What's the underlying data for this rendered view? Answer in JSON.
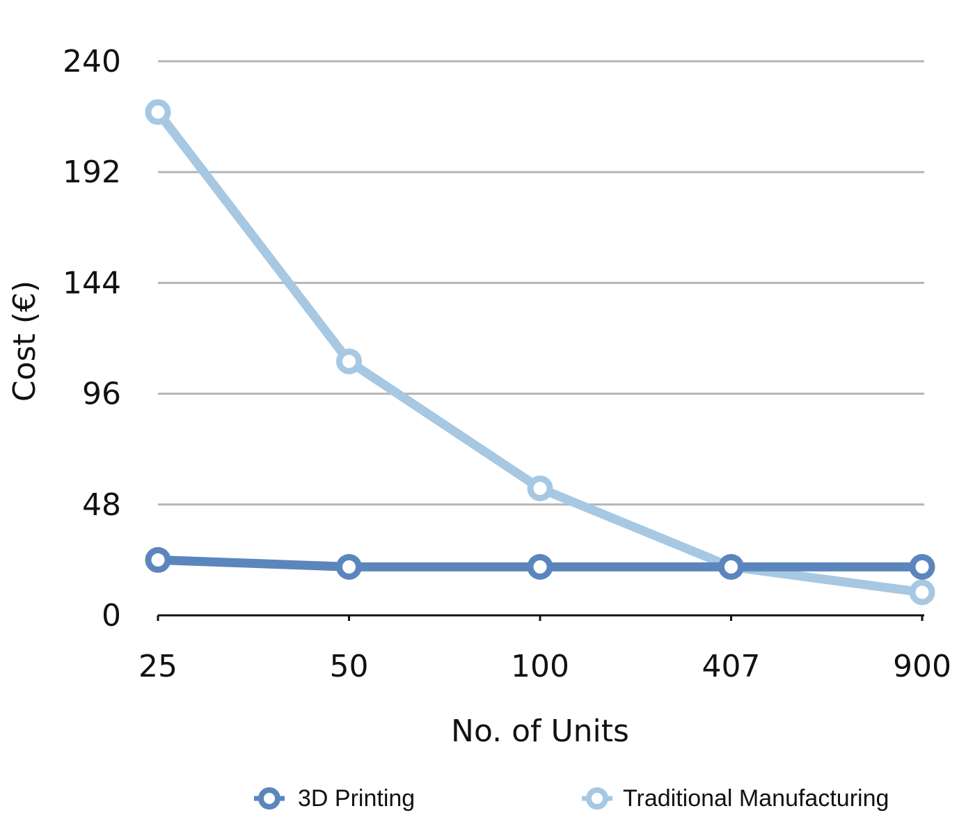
{
  "chart_data": {
    "type": "line",
    "categories": [
      "25",
      "50",
      "100",
      "407",
      "900"
    ],
    "xlabel": "No. of Units",
    "ylabel": "Cost (€)",
    "ylim": [
      0,
      240
    ],
    "yticks": [
      "0",
      "48",
      "96",
      "144",
      "192",
      "240"
    ],
    "grid": true,
    "legend_position": "bottom",
    "series": [
      {
        "name": "3D Printing",
        "color": "#5b86bd",
        "values": [
          24,
          21,
          21,
          21,
          21
        ]
      },
      {
        "name": "Traditional Manufacturing",
        "color": "#a7c8e2",
        "values": [
          218,
          110,
          55,
          21,
          10
        ]
      }
    ]
  }
}
